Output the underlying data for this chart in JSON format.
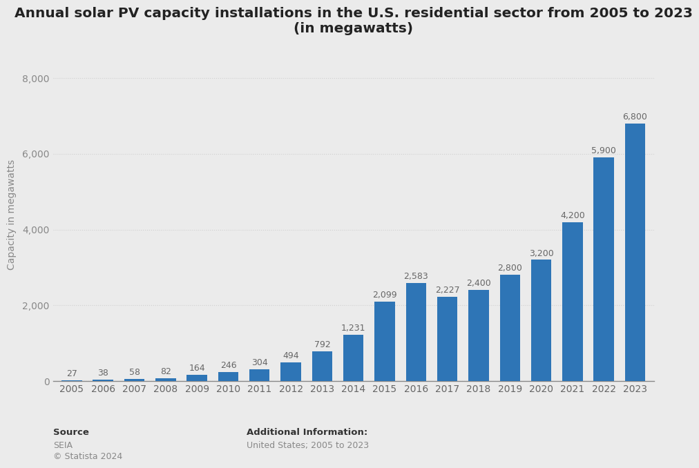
{
  "title": "Annual solar PV capacity installations in the U.S. residential sector from 2005 to 2023\n(in megawatts)",
  "years": [
    "2005",
    "2006",
    "2007",
    "2008",
    "2009",
    "2010",
    "2011",
    "2012",
    "2013",
    "2014",
    "2015",
    "2016",
    "2017",
    "2018",
    "2019",
    "2020",
    "2021",
    "2022",
    "2023"
  ],
  "values": [
    27,
    38,
    58,
    82,
    164,
    246,
    304,
    494,
    792,
    1231,
    2099,
    2583,
    2227,
    2400,
    2800,
    3200,
    4200,
    5900,
    6800
  ],
  "bar_color": "#2E75B6",
  "background_color": "#ebebeb",
  "plot_bg_color": "#ebebeb",
  "ylabel": "Capacity in megawatts",
  "ylim": [
    0,
    8800
  ],
  "yticks": [
    0,
    2000,
    4000,
    6000,
    8000
  ],
  "grid_color": "#d0d0d0",
  "source_label": "Source",
  "source_line1": "SEIA",
  "source_line2": "© Statista 2024",
  "additional_label": "Additional Information:",
  "additional_text": "United States; 2005 to 2023",
  "title_fontsize": 14.5,
  "axis_label_fontsize": 10,
  "tick_fontsize": 10,
  "value_fontsize": 9,
  "footer_fontsize": 9.5
}
